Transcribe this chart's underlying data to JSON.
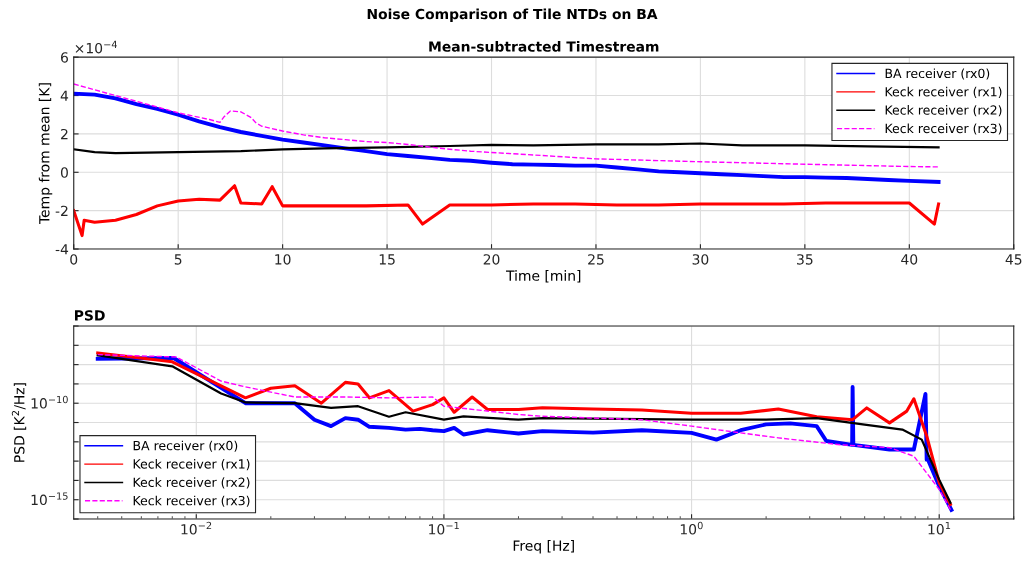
{
  "chart_data": [
    {
      "type": "line",
      "title": "Noise Comparison of Tile NTDs on BA",
      "subtitle": "Mean-subtracted Timestream",
      "xlabel": "Time [min]",
      "ylabel": "Temp from mean [K]",
      "annotations": [
        "×10$^{−4}$"
      ],
      "xlim": [
        0,
        45
      ],
      "xticks": [
        0,
        5,
        10,
        15,
        20,
        25,
        30,
        35,
        40,
        45
      ],
      "ylim": [
        -4,
        6
      ],
      "yticks": [
        -4,
        -2,
        0,
        2,
        4,
        6
      ],
      "grid": true,
      "legend": "top right",
      "series": [
        {
          "name": "BA receiver (rx0)",
          "color": "#0000ff",
          "x": [
            0,
            1,
            2,
            3,
            4,
            5,
            6,
            7,
            8,
            9,
            10,
            11,
            12,
            13,
            14,
            15,
            16,
            17,
            18,
            19,
            20,
            21,
            22,
            23,
            24,
            25,
            26,
            27,
            28,
            29,
            30,
            31,
            32,
            33,
            34,
            35,
            36,
            37,
            38,
            39,
            40,
            41.4
          ],
          "values": [
            4.1,
            4.05,
            3.85,
            3.55,
            3.3,
            3.0,
            2.65,
            2.35,
            2.1,
            1.9,
            1.7,
            1.55,
            1.4,
            1.25,
            1.1,
            0.95,
            0.85,
            0.75,
            0.65,
            0.6,
            0.5,
            0.42,
            0.4,
            0.38,
            0.35,
            0.35,
            0.25,
            0.15,
            0.05,
            0.0,
            -0.05,
            -0.1,
            -0.15,
            -0.2,
            -0.25,
            -0.25,
            -0.28,
            -0.3,
            -0.35,
            -0.4,
            -0.45,
            -0.5
          ]
        },
        {
          "name": "Keck receiver (rx1)",
          "color": "#ff0000",
          "x": [
            0,
            0.4,
            0.5,
            1,
            2,
            3,
            4,
            5,
            6,
            7,
            7.7,
            8,
            9,
            9.5,
            10,
            12,
            14,
            16,
            16.7,
            18,
            20,
            22,
            24,
            26,
            28,
            30,
            32,
            34,
            36,
            38,
            40,
            41.2,
            41.4
          ],
          "values": [
            -2.0,
            -3.3,
            -2.5,
            -2.6,
            -2.5,
            -2.2,
            -1.75,
            -1.5,
            -1.4,
            -1.45,
            -0.7,
            -1.6,
            -1.65,
            -0.75,
            -1.75,
            -1.75,
            -1.75,
            -1.7,
            -2.7,
            -1.7,
            -1.7,
            -1.65,
            -1.65,
            -1.7,
            -1.7,
            -1.65,
            -1.65,
            -1.65,
            -1.6,
            -1.6,
            -1.6,
            -2.7,
            -1.65
          ]
        },
        {
          "name": "Keck receiver (rx2)",
          "color": "#000000",
          "x": [
            0,
            1,
            2,
            5,
            8,
            10,
            12,
            15,
            18,
            20,
            22,
            25,
            28,
            30,
            32,
            35,
            38,
            41.4
          ],
          "values": [
            1.2,
            1.05,
            1.0,
            1.05,
            1.1,
            1.2,
            1.25,
            1.3,
            1.37,
            1.43,
            1.4,
            1.45,
            1.45,
            1.5,
            1.4,
            1.4,
            1.35,
            1.3
          ]
        },
        {
          "name": "Keck receiver (rx3)",
          "color": "#ff00ff",
          "line_style": "dashed",
          "x": [
            0,
            2,
            4,
            5,
            6.5,
            7,
            7.2,
            7.5,
            8,
            8.5,
            8.7,
            9,
            10,
            11,
            12,
            13,
            14,
            15,
            16,
            17,
            18,
            19,
            20,
            21,
            25,
            30,
            35,
            40,
            41.4
          ],
          "values": [
            4.6,
            4.0,
            3.4,
            3.1,
            2.75,
            2.6,
            2.9,
            3.2,
            3.15,
            2.85,
            2.6,
            2.4,
            2.15,
            1.95,
            1.8,
            1.7,
            1.6,
            1.55,
            1.45,
            1.32,
            1.2,
            1.1,
            1.03,
            0.97,
            0.7,
            0.55,
            0.42,
            0.3,
            0.28
          ]
        }
      ]
    },
    {
      "type": "line",
      "title": "PSD",
      "xlabel": "Freq [Hz]",
      "ylabel": "PSD [K$^{2}$/Hz]",
      "log": "xy",
      "xlim": [
        0.0032,
        20
      ],
      "xticks": [
        {
          "value": 0.01,
          "label": "10$^{−2}$"
        },
        {
          "value": 0.1,
          "label": "10$^{−1}$"
        },
        {
          "value": 1,
          "label": "10$^{0}$"
        },
        {
          "value": 10,
          "label": "10$^{1}$"
        }
      ],
      "ylim": [
        1e-16,
        1e-06
      ],
      "yticks": [
        {
          "value": 1e-16,
          "label": null
        },
        {
          "value": 1e-15,
          "label": "10$^{−15}$"
        },
        {
          "value": 1e-14,
          "label": null
        },
        {
          "value": 1e-13,
          "label": null
        },
        {
          "value": 1e-12,
          "label": null
        },
        {
          "value": 1e-11,
          "label": null
        },
        {
          "value": 1e-10,
          "label": "10$^{−10}$"
        },
        {
          "value": 1e-09,
          "label": null
        },
        {
          "value": 1e-08,
          "label": null
        },
        {
          "value": 1e-07,
          "label": null
        },
        {
          "value": 1e-06,
          "label": null
        }
      ],
      "grid": true,
      "legend": "bottom left",
      "series": [
        {
          "name": "BA receiver (rx0)",
          "color": "#0000ff",
          "x": [
            0.004,
            0.0081,
            0.0158,
            0.02,
            0.025,
            0.03,
            0.035,
            0.04,
            0.045,
            0.05,
            0.06,
            0.07,
            0.08,
            0.09,
            0.1,
            0.11,
            0.12,
            0.15,
            0.2,
            0.25,
            0.4,
            0.63,
            1.0,
            1.26,
            1.58,
            2.0,
            2.5,
            3.2,
            3.5,
            4.45,
            4.47,
            4.5,
            6.3,
            7.9,
            8.8,
            8.9,
            9.0,
            10.0,
            11.2
          ],
          "values": [
            2e-08,
            2.2e-08,
            1e-10,
            1e-10,
            1e-10,
            1.4e-11,
            6.5e-12,
            1.7e-11,
            1.4e-11,
            6e-12,
            5.3e-12,
            4.3e-12,
            4.7e-12,
            4e-12,
            3.6e-12,
            5.3e-12,
            2.4e-12,
            4e-12,
            2.7e-12,
            3.6e-12,
            3e-12,
            4e-12,
            2.9e-12,
            1.3e-12,
            4e-12,
            8e-12,
            9e-12,
            6.5e-12,
            1.1e-12,
            7e-13,
            7e-10,
            7e-13,
            4e-13,
            4e-13,
            3e-10,
            1.2e-13,
            1.2e-13,
            5e-15,
            3e-16
          ]
        },
        {
          "name": "Keck receiver (rx1)",
          "color": "#ff0000",
          "x": [
            0.004,
            0.008,
            0.0158,
            0.02,
            0.025,
            0.032,
            0.04,
            0.045,
            0.05,
            0.06,
            0.075,
            0.09,
            0.1,
            0.11,
            0.13,
            0.15,
            0.2,
            0.25,
            0.4,
            0.63,
            1.0,
            1.58,
            2.24,
            3.2,
            4.47,
            5.1,
            6.3,
            7.4,
            7.9,
            8.9,
            10.0,
            11.1
          ],
          "values": [
            4e-08,
            1.4e-08,
            1.9e-10,
            6e-10,
            8e-10,
            1e-10,
            1.2e-09,
            1e-09,
            1.9e-10,
            4.5e-10,
            3.9e-11,
            8.5e-11,
            1.9e-10,
            3.4e-11,
            2.1e-10,
            4.7e-11,
            4.7e-11,
            5.8e-11,
            5e-11,
            4.5e-11,
            3e-11,
            3e-11,
            5e-11,
            2e-11,
            1.4e-11,
            5.7e-11,
            9.6e-12,
            3.9e-11,
            1.7e-10,
            2e-12,
            7.6e-15,
            5.7e-16
          ]
        },
        {
          "name": "Keck receiver (rx2)",
          "color": "#000000",
          "x": [
            0.004,
            0.008,
            0.0126,
            0.0158,
            0.025,
            0.035,
            0.045,
            0.06,
            0.07,
            0.1,
            0.12,
            0.2,
            0.25,
            1.0,
            2.0,
            3.2,
            5.0,
            7.1,
            8.5,
            10.0,
            11.1
          ],
          "values": [
            3e-08,
            8.2e-09,
            3.2e-10,
            1.1e-10,
            1e-10,
            5.7e-11,
            7e-11,
            2e-11,
            3.4e-11,
            1.4e-11,
            2.1e-11,
            1.4e-11,
            1.7e-11,
            1.4e-11,
            1.4e-11,
            1.7e-11,
            7.8e-12,
            4.3e-12,
            1.3e-12,
            1.1e-14,
            7e-16
          ]
        },
        {
          "name": "Keck receiver (rx3)",
          "color": "#ff00ff",
          "line_style": "dashed",
          "x": [
            0.004,
            0.0083,
            0.0126,
            0.0158,
            0.025,
            0.04,
            0.06,
            0.09,
            0.1,
            0.2,
            0.25,
            0.63,
            1.0,
            1.58,
            2.24,
            4.0,
            6.3,
            7.9,
            10.0,
            11.2
          ],
          "values": [
            3.3e-08,
            2.5e-08,
            1.4e-09,
            7e-10,
            2.1e-10,
            2.1e-10,
            1.9e-10,
            2.1e-10,
            7e-11,
            2.6e-11,
            2.1e-11,
            1.4e-11,
            6.5e-12,
            2.9e-12,
            1.6e-12,
            7e-13,
            5e-13,
            1.8e-13,
            3.4e-15,
            2.5e-16
          ]
        }
      ]
    }
  ]
}
